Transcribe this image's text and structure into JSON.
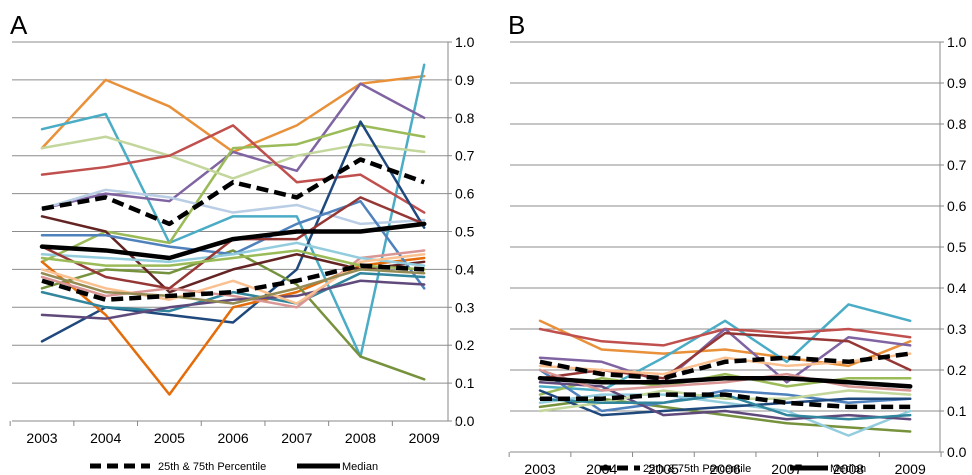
{
  "chart_data": [
    {
      "type": "line",
      "panel_label": "A",
      "x": [
        "2003",
        "2004",
        "2005",
        "2006",
        "2007",
        "2008",
        "2009"
      ],
      "ylim": [
        0.0,
        1.0
      ],
      "yticks": [
        "0.0",
        "0.1",
        "0.2",
        "0.3",
        "0.4",
        "0.5",
        "0.6",
        "0.7",
        "0.8",
        "0.9",
        "1.0"
      ],
      "grid": true,
      "legend_position": "bottom",
      "legend": [
        "25th & 75th Percentile",
        "Median"
      ],
      "series": [
        {
          "color": "#E8913A",
          "values": [
            0.72,
            0.9,
            0.83,
            0.71,
            0.78,
            0.89,
            0.91
          ]
        },
        {
          "color": "#4BACC6",
          "values": [
            0.77,
            0.81,
            0.47,
            0.54,
            0.54,
            0.17,
            0.94
          ]
        },
        {
          "color": "#8064A2",
          "values": [
            0.56,
            0.6,
            0.58,
            0.71,
            0.66,
            0.89,
            0.8
          ]
        },
        {
          "color": "#9BBB59",
          "values": [
            0.42,
            0.5,
            0.47,
            0.72,
            0.73,
            0.78,
            0.75
          ]
        },
        {
          "color": "#C3D69B",
          "values": [
            0.72,
            0.75,
            0.7,
            0.64,
            0.7,
            0.73,
            0.71
          ]
        },
        {
          "color": "#C0504D",
          "values": [
            0.65,
            0.67,
            0.7,
            0.78,
            0.63,
            0.65,
            0.55
          ]
        },
        {
          "color": "#B9CDE5",
          "values": [
            0.56,
            0.61,
            0.59,
            0.55,
            0.57,
            0.52,
            0.53
          ]
        },
        {
          "color": "#1F497D",
          "values": [
            0.21,
            0.3,
            0.28,
            0.26,
            0.4,
            0.79,
            0.51
          ]
        },
        {
          "color": "#E46C0A",
          "values": [
            0.42,
            0.28,
            0.07,
            0.3,
            0.34,
            0.41,
            0.43
          ]
        },
        {
          "color": "#76923C",
          "values": [
            0.35,
            0.4,
            0.39,
            0.45,
            0.36,
            0.17,
            0.11
          ]
        },
        {
          "color": "#632423",
          "values": [
            0.54,
            0.5,
            0.34,
            0.4,
            0.44,
            0.4,
            0.42
          ]
        },
        {
          "color": "#4F81BD",
          "values": [
            0.49,
            0.49,
            0.46,
            0.44,
            0.52,
            0.58,
            0.35
          ]
        },
        {
          "color": "#31859C",
          "values": [
            0.34,
            0.3,
            0.29,
            0.34,
            0.31,
            0.39,
            0.38
          ]
        },
        {
          "color": "#D99694",
          "values": [
            0.38,
            0.33,
            0.35,
            0.33,
            0.3,
            0.43,
            0.45
          ]
        },
        {
          "color": "#604A7B",
          "values": [
            0.28,
            0.27,
            0.3,
            0.32,
            0.33,
            0.37,
            0.36
          ]
        },
        {
          "color": "#93CDDD",
          "values": [
            0.44,
            0.43,
            0.42,
            0.44,
            0.47,
            0.43,
            0.41
          ]
        },
        {
          "color": "#FAC090",
          "values": [
            0.4,
            0.35,
            0.32,
            0.37,
            0.31,
            0.42,
            0.44
          ]
        },
        {
          "color": "#953735",
          "values": [
            0.46,
            0.38,
            0.35,
            0.48,
            0.48,
            0.59,
            0.52
          ]
        },
        {
          "color": "#9BBB59",
          "values": [
            0.43,
            0.41,
            0.41,
            0.43,
            0.45,
            0.41,
            0.4
          ]
        },
        {
          "color": "#948A54",
          "values": [
            0.39,
            0.34,
            0.33,
            0.31,
            0.35,
            0.4,
            0.39
          ]
        },
        {
          "color": "#000000",
          "role": "p75",
          "values": [
            0.56,
            0.59,
            0.52,
            0.63,
            0.59,
            0.69,
            0.63
          ]
        },
        {
          "color": "#000000",
          "role": "median",
          "values": [
            0.46,
            0.45,
            0.43,
            0.48,
            0.5,
            0.5,
            0.52
          ]
        },
        {
          "color": "#000000",
          "role": "p25",
          "values": [
            0.37,
            0.32,
            0.33,
            0.34,
            0.37,
            0.41,
            0.4
          ]
        }
      ]
    },
    {
      "type": "line",
      "panel_label": "B",
      "x": [
        "2003",
        "2004",
        "2005",
        "2006",
        "2007",
        "2008",
        "2009"
      ],
      "ylim": [
        0.0,
        1.0
      ],
      "yticks": [
        "0.0",
        "0.1",
        "0.2",
        "0.3",
        "0.4",
        "0.5",
        "0.6",
        "0.7",
        "0.8",
        "0.9",
        "1.0"
      ],
      "grid": true,
      "legend_position": "bottom",
      "legend": [
        "25th & 75th Percentile",
        "Median"
      ],
      "series": [
        {
          "color": "#E8913A",
          "values": [
            0.32,
            0.25,
            0.24,
            0.25,
            0.23,
            0.21,
            0.27
          ]
        },
        {
          "color": "#4BACC6",
          "values": [
            0.16,
            0.15,
            0.23,
            0.32,
            0.22,
            0.36,
            0.32
          ]
        },
        {
          "color": "#C0504D",
          "values": [
            0.3,
            0.27,
            0.26,
            0.3,
            0.29,
            0.3,
            0.28
          ]
        },
        {
          "color": "#8064A2",
          "values": [
            0.23,
            0.22,
            0.17,
            0.3,
            0.17,
            0.28,
            0.26
          ]
        },
        {
          "color": "#9BBB59",
          "values": [
            0.14,
            0.18,
            0.16,
            0.19,
            0.16,
            0.18,
            0.18
          ]
        },
        {
          "color": "#76923C",
          "values": [
            0.11,
            0.13,
            0.11,
            0.09,
            0.07,
            0.06,
            0.05
          ]
        },
        {
          "color": "#4F81BD",
          "values": [
            0.2,
            0.1,
            0.12,
            0.15,
            0.14,
            0.12,
            0.13
          ]
        },
        {
          "color": "#93CDDD",
          "values": [
            0.12,
            0.14,
            0.14,
            0.12,
            0.1,
            0.04,
            0.1
          ]
        },
        {
          "color": "#953735",
          "values": [
            0.18,
            0.2,
            0.18,
            0.29,
            0.28,
            0.27,
            0.2
          ]
        },
        {
          "color": "#1F497D",
          "values": [
            0.15,
            0.09,
            0.1,
            0.11,
            0.12,
            0.13,
            0.13
          ]
        },
        {
          "color": "#FAC090",
          "values": [
            0.21,
            0.2,
            0.19,
            0.23,
            0.21,
            0.22,
            0.24
          ]
        },
        {
          "color": "#604A7B",
          "values": [
            0.17,
            0.16,
            0.09,
            0.1,
            0.08,
            0.09,
            0.08
          ]
        },
        {
          "color": "#C3D69B",
          "values": [
            0.1,
            0.12,
            0.15,
            0.13,
            0.13,
            0.15,
            0.14
          ]
        },
        {
          "color": "#31859C",
          "values": [
            0.13,
            0.12,
            0.12,
            0.14,
            0.09,
            0.08,
            0.09
          ]
        },
        {
          "color": "#D99694",
          "values": [
            0.2,
            0.15,
            0.16,
            0.17,
            0.19,
            0.16,
            0.15
          ]
        },
        {
          "color": "#000000",
          "role": "p75",
          "values": [
            0.22,
            0.19,
            0.18,
            0.22,
            0.23,
            0.22,
            0.24
          ]
        },
        {
          "color": "#000000",
          "role": "median",
          "values": [
            0.18,
            0.17,
            0.17,
            0.18,
            0.18,
            0.17,
            0.16
          ]
        },
        {
          "color": "#000000",
          "role": "p25",
          "values": [
            0.13,
            0.13,
            0.14,
            0.14,
            0.12,
            0.11,
            0.11
          ]
        }
      ]
    }
  ]
}
